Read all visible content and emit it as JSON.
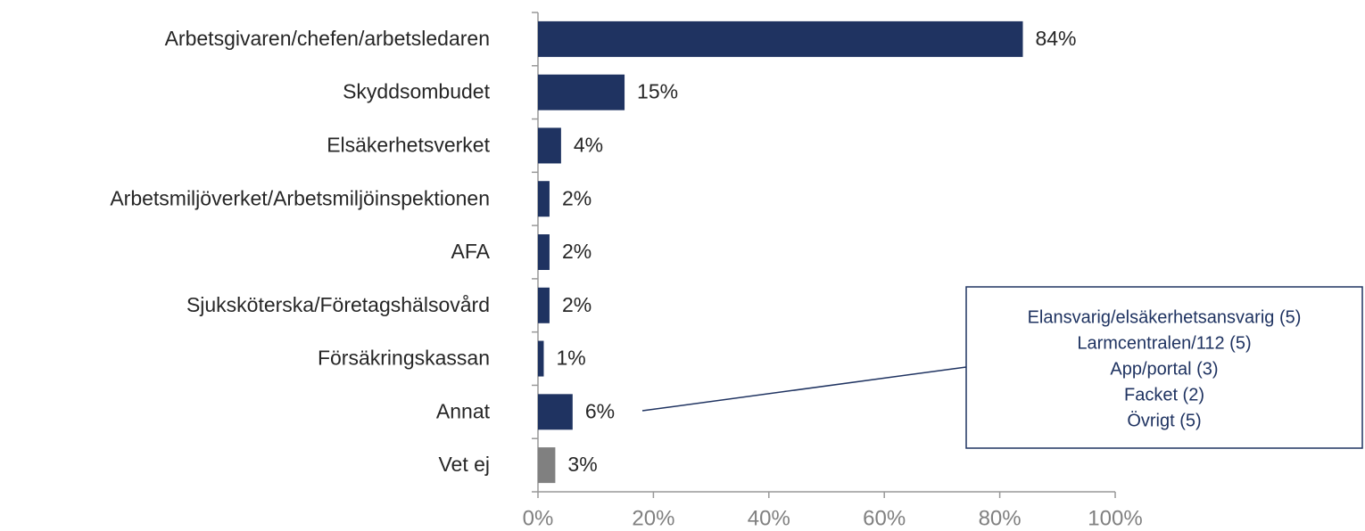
{
  "chart_data": {
    "type": "hbar",
    "categories": [
      "Arbetsgivaren/chefen/arbetsledaren",
      "Skyddsombudet",
      "Elsäkerhetsverket",
      "Arbetsmiljöverket/Arbetsmiljöinspektionen",
      "AFA",
      "Sjuksköterska/Företagshälsovård",
      "Försäkringskassan",
      "Annat",
      "Vet ej"
    ],
    "values": [
      84,
      15,
      4,
      2,
      2,
      2,
      1,
      6,
      3
    ],
    "value_labels": [
      "84%",
      "15%",
      "4%",
      "2%",
      "2%",
      "2%",
      "1%",
      "6%",
      "3%"
    ],
    "colors": [
      "#1f3361",
      "#1f3361",
      "#1f3361",
      "#1f3361",
      "#1f3361",
      "#1f3361",
      "#1f3361",
      "#1f3361",
      "#808080"
    ],
    "xlim": [
      0,
      100
    ],
    "xticks": [
      {
        "value": 0,
        "label": "0%"
      },
      {
        "value": 20,
        "label": "20%"
      },
      {
        "value": 40,
        "label": "40%"
      },
      {
        "value": 60,
        "label": "60%"
      },
      {
        "value": 80,
        "label": "80%"
      },
      {
        "value": 100,
        "label": "100%"
      }
    ],
    "annotation": [
      "Elansvarig/elsäkerhetsansvarig (5)",
      "Larmcentralen/112 (5)",
      "App/portal (3)",
      "Facket (2)",
      "Övrigt (5)"
    ]
  }
}
